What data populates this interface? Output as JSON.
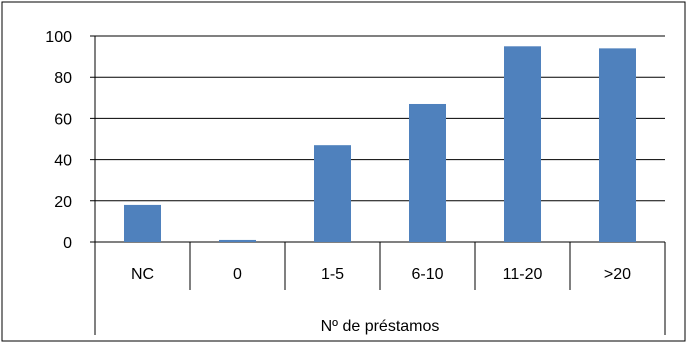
{
  "chart_data": {
    "type": "bar",
    "title": "",
    "xlabel": "Nº de préstamos",
    "ylabel": "",
    "categories": [
      "NC",
      "0",
      "1-5",
      "6-10",
      "11-20",
      ">20"
    ],
    "values": [
      18,
      1,
      47,
      67,
      95,
      94
    ],
    "ylim": [
      0,
      100
    ],
    "yticks": [
      "0",
      "20",
      "40",
      "60",
      "80",
      "100"
    ],
    "grid": true,
    "legend": "none",
    "bar_color": "#4F81BD",
    "gridline_color": "#000000"
  }
}
